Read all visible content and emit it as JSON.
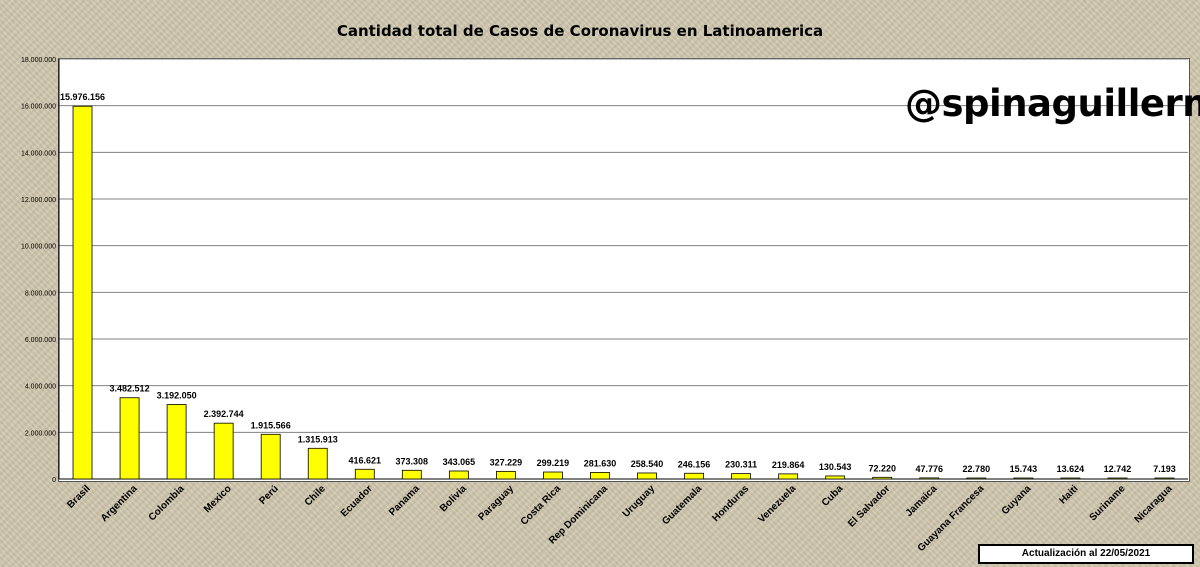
{
  "title": "Cantidad total de Casos de Coronavirus en Latinoamerica",
  "watermark": "@spinaguillermo",
  "update_note": "Actualización al 22/05/2021",
  "colors": {
    "bar_fill": "#ffff00",
    "bar_stroke": "#000000",
    "grid": "#808080",
    "plot_bg": "#ffffff"
  },
  "chart_data": {
    "type": "bar",
    "title": "Cantidad total de Casos de Coronavirus en Latinoamerica",
    "xlabel": "",
    "ylabel": "",
    "ylim": [
      0,
      18000000
    ],
    "grid": true,
    "y_ticks": [
      0,
      2000000,
      4000000,
      6000000,
      8000000,
      10000000,
      12000000,
      14000000,
      16000000,
      18000000
    ],
    "y_tick_labels": [
      "0",
      "2.000.000",
      "4.000.000",
      "6.000.000",
      "8.000.000",
      "10.000.000",
      "12.000.000",
      "14.000.000",
      "16.000.000",
      "18.000.000"
    ],
    "categories": [
      "Brasil",
      "Argentina",
      "Colombia",
      "Mexico",
      "Perú",
      "Chile",
      "Ecuador",
      "Panama",
      "Bolivia",
      "Paraguay",
      "Costa Rica",
      "Rep Dominicana",
      "Uruguay",
      "Guatemala",
      "Honduras",
      "Venezuela",
      "Cuba",
      "El Salvador",
      "Jamaica",
      "Guayana Francesa",
      "Guyana",
      "Haiti",
      "Suriname",
      "Nicaragua"
    ],
    "values": [
      15976156,
      3482512,
      3192050,
      2392744,
      1915566,
      1315913,
      416621,
      373308,
      343065,
      327229,
      299219,
      281630,
      258540,
      246156,
      230311,
      219864,
      130543,
      72220,
      47776,
      22780,
      15743,
      13624,
      12742,
      7193
    ],
    "data_labels": [
      "15.976.156",
      "3.482.512",
      "3.192.050",
      "2.392.744",
      "1.915.566",
      "1.315.913",
      "416.621",
      "373.308",
      "343.065",
      "327.229",
      "299.219",
      "281.630",
      "258.540",
      "246.156",
      "230.311",
      "219.864",
      "130.543",
      "72.220",
      "47.776",
      "22.780",
      "15.743",
      "13.624",
      "12.742",
      "7.193"
    ]
  }
}
